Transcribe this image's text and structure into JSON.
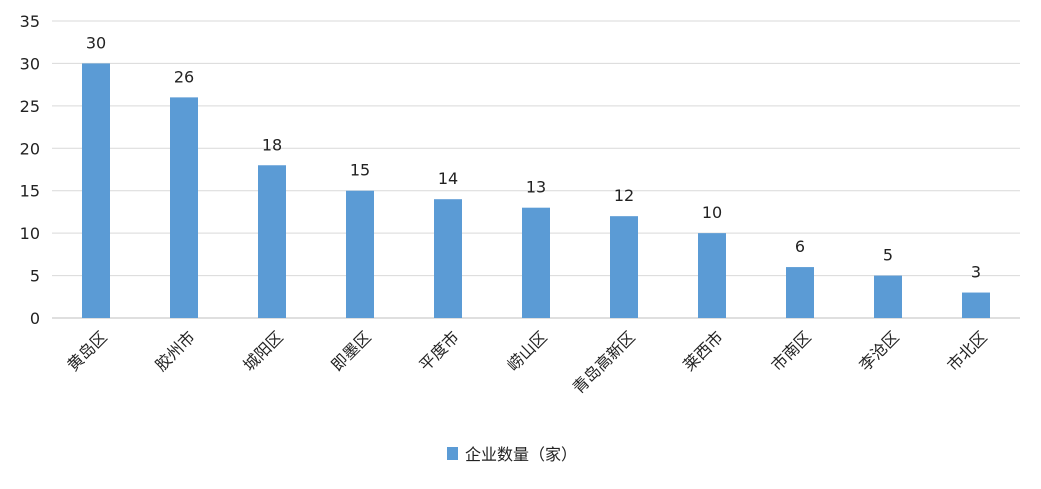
{
  "chart_data": {
    "type": "bar",
    "categories": [
      "黄岛区",
      "胶州市",
      "城阳区",
      "即墨区",
      "平度市",
      "崂山区",
      "青岛高新区",
      "莱西市",
      "市南区",
      "李沧区",
      "市北区"
    ],
    "series": [
      {
        "name": "企业数量（家）",
        "values": [
          30,
          26,
          18,
          15,
          14,
          13,
          12,
          10,
          6,
          5,
          3
        ],
        "color": "#5b9bd5"
      }
    ],
    "ylim": [
      0,
      35
    ],
    "yticks": [
      0,
      5,
      10,
      15,
      20,
      25,
      30,
      35
    ],
    "grid": true,
    "data_labels": true,
    "legend": "bottom"
  }
}
